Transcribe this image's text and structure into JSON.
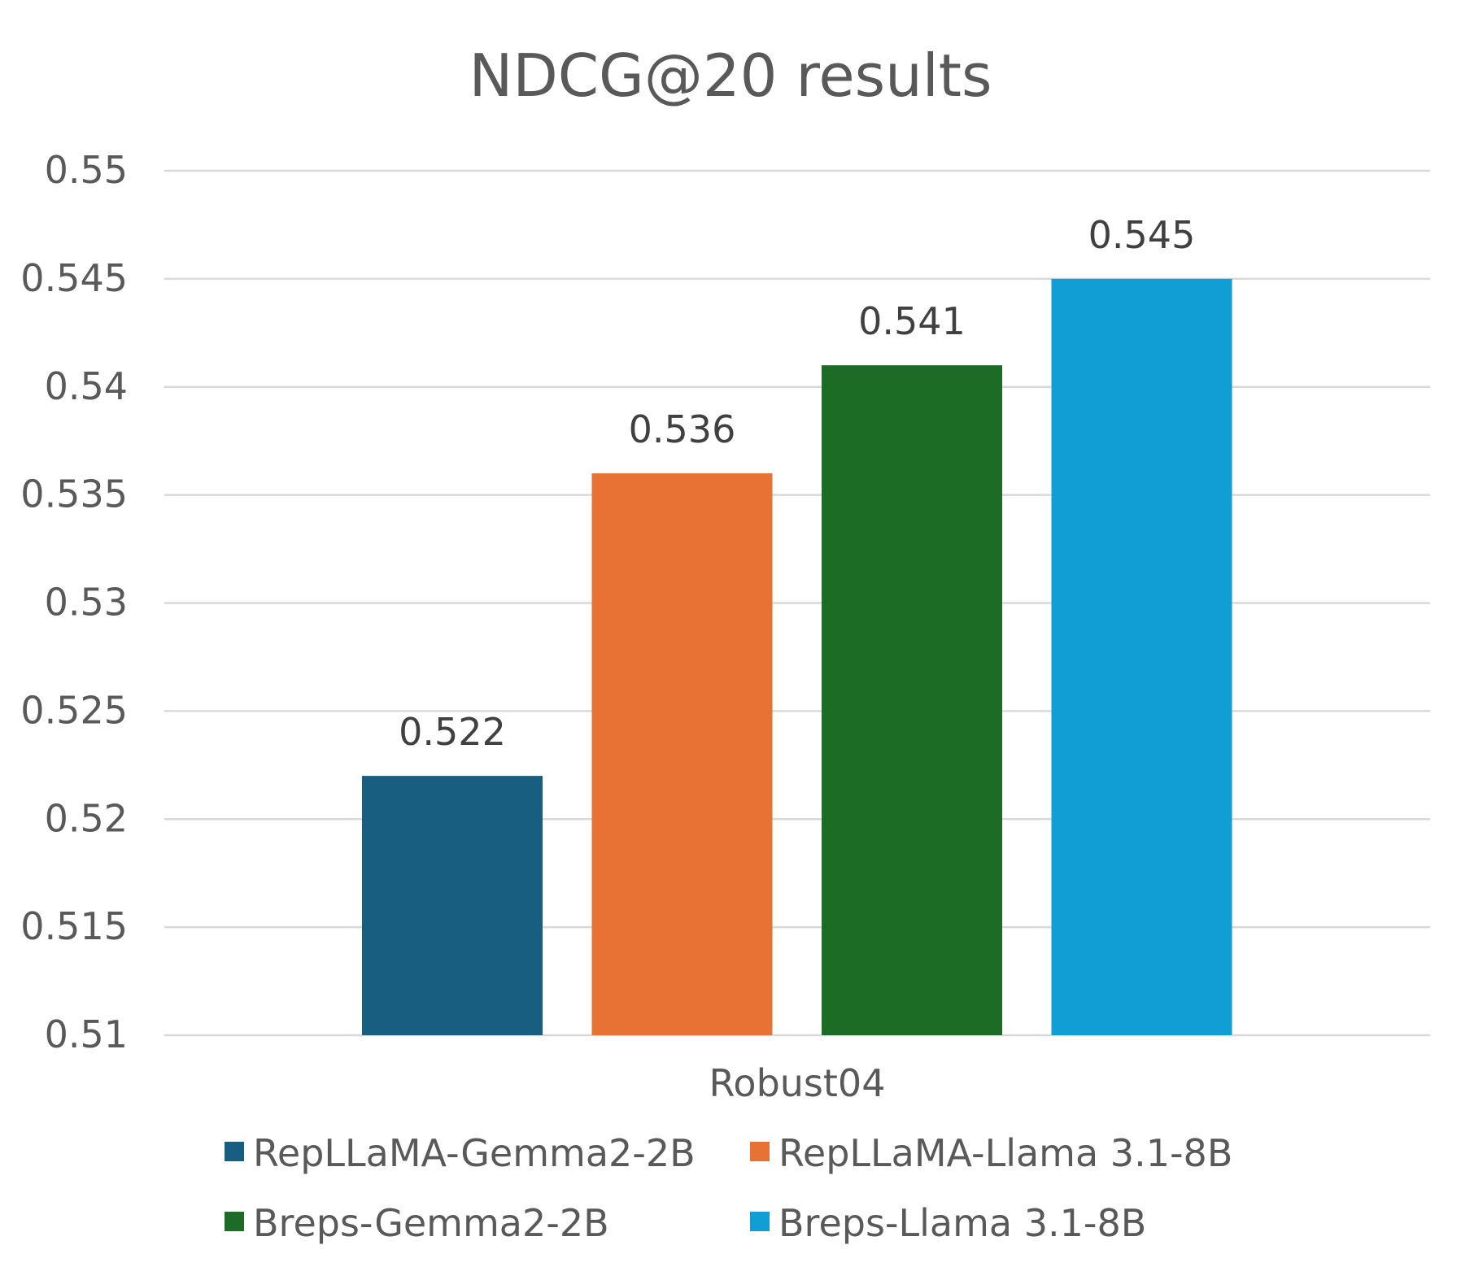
{
  "chart_data": {
    "type": "bar",
    "title": "NDCG@20 results",
    "xlabel": "",
    "ylabel": "",
    "categories": [
      "Robust04"
    ],
    "series": [
      {
        "name": "RepLLaMA-Gemma2-2B",
        "values": [
          0.522
        ],
        "label": "0.522",
        "color": "#175e81"
      },
      {
        "name": "RepLLaMA-Llama 3.1-8B",
        "values": [
          0.536
        ],
        "label": "0.536",
        "color": "#e87234"
      },
      {
        "name": "Breps-Gemma2-2B",
        "values": [
          0.541
        ],
        "label": "0.541",
        "color": "#1c6c25"
      },
      {
        "name": "Breps-Llama 3.1-8B",
        "values": [
          0.545
        ],
        "label": "0.545",
        "color": "#119ed5"
      }
    ],
    "ylim": [
      0.51,
      0.55
    ],
    "yticks": [
      0.51,
      0.515,
      0.52,
      0.525,
      0.53,
      0.535,
      0.54,
      0.545,
      0.55
    ],
    "ytick_labels": [
      "0.51",
      "0.515",
      "0.52",
      "0.525",
      "0.53",
      "0.535",
      "0.54",
      "0.545",
      "0.55"
    ],
    "grid": true,
    "legend_position": "bottom",
    "colors": {
      "text": "#595959",
      "label_text": "#404040",
      "grid": "#d9d9d9"
    }
  }
}
